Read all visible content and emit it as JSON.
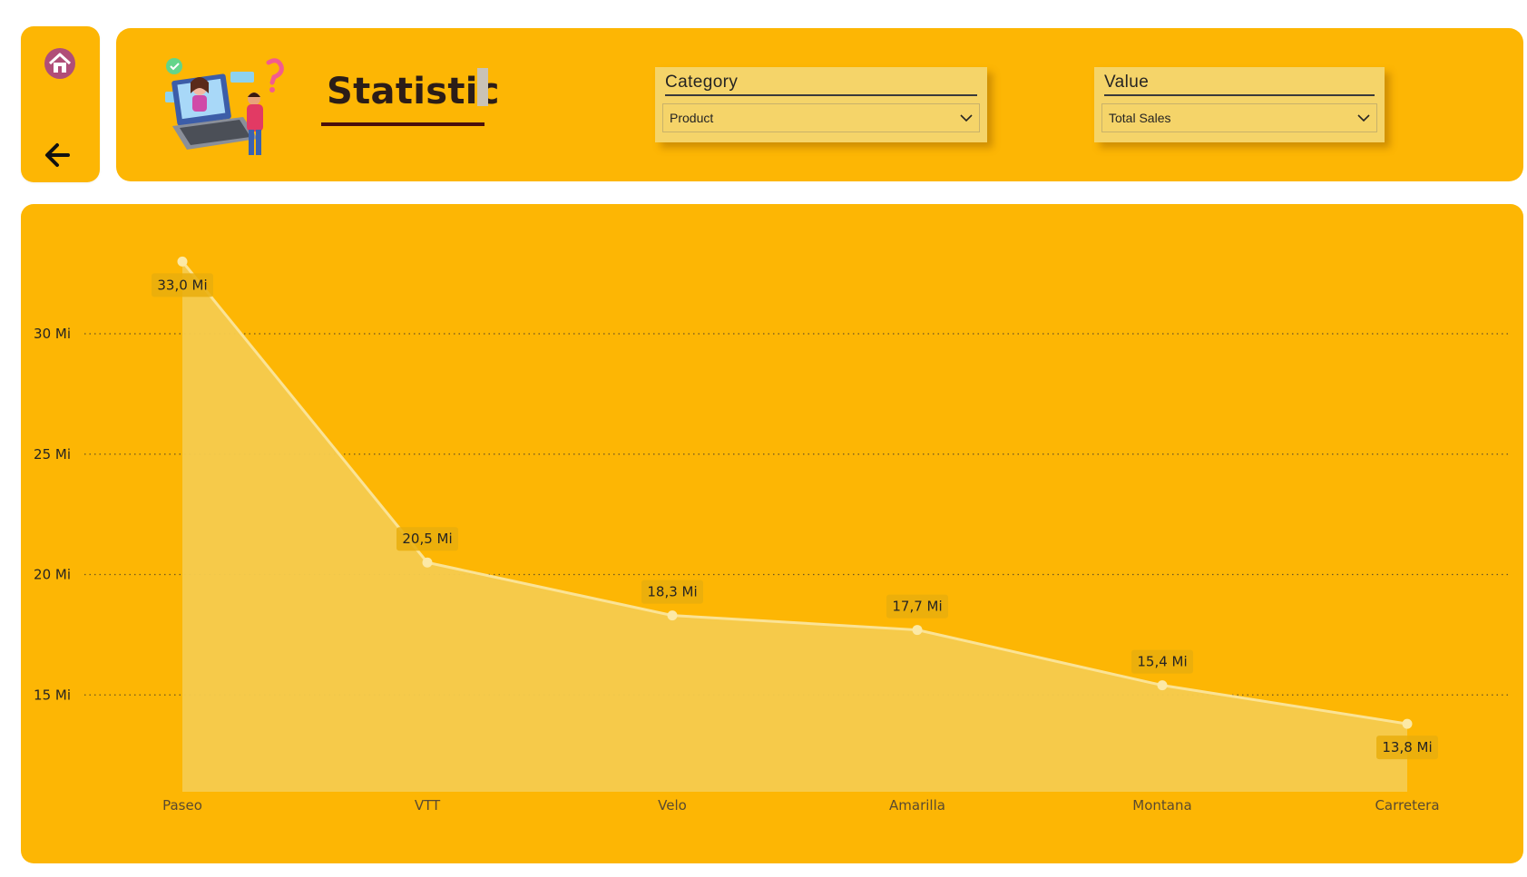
{
  "header": {
    "title": "Statistic"
  },
  "nav": {
    "home_icon": "home-icon",
    "back_icon": "arrow-left-icon"
  },
  "slicers": {
    "category": {
      "label": "Category",
      "value": "Product"
    },
    "value": {
      "label": "Value",
      "value": "Total Sales"
    }
  },
  "colors": {
    "panel": "#FDB604",
    "area_fill": "#F5CB4E",
    "line": "#FBE395",
    "marker": "#FCE9A6",
    "label_bg": "#E9AE0D",
    "gridline": "#6b5420"
  },
  "chart_data": {
    "type": "area",
    "categories": [
      "Paseo",
      "VTT",
      "Velo",
      "Amarilla",
      "Montana",
      "Carretera"
    ],
    "values": [
      33.0,
      20.5,
      18.3,
      17.7,
      15.4,
      13.8
    ],
    "data_labels": [
      "33,0 Mi",
      "20,5 Mi",
      "18,3 Mi",
      "17,7 Mi",
      "15,4 Mi",
      "13,8 Mi"
    ],
    "y_ticks": [
      15,
      20,
      25,
      30
    ],
    "y_tick_labels": [
      "15 Mi",
      "20 Mi",
      "25 Mi",
      "30 Mi"
    ],
    "ylim": [
      11.9,
      36
    ],
    "grid": true,
    "title": "",
    "xlabel": "",
    "ylabel": ""
  }
}
